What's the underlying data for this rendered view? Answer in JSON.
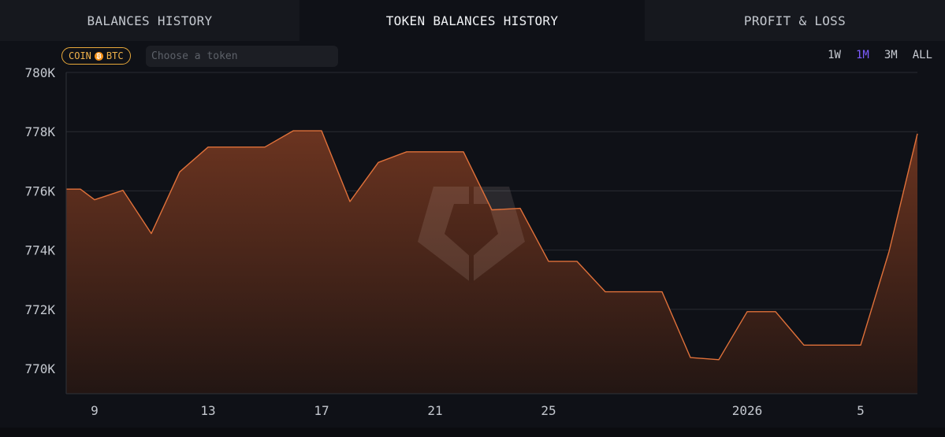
{
  "tabs": [
    {
      "label": "BALANCES HISTORY",
      "active": false
    },
    {
      "label": "TOKEN BALANCES HISTORY",
      "active": true
    },
    {
      "label": "PROFIT & LOSS",
      "active": false
    }
  ],
  "filter": {
    "badge_prefix": "COIN",
    "badge_icon": "bitcoin-icon",
    "badge_token": "BTC",
    "token_placeholder": "Choose a token"
  },
  "ranges": [
    {
      "label": "1W",
      "active": false
    },
    {
      "label": "1M",
      "active": true
    },
    {
      "label": "3M",
      "active": false
    },
    {
      "label": "ALL",
      "active": false
    }
  ],
  "colors": {
    "line": "#e0713a",
    "fill_top": "#6b3420",
    "fill_bottom": "#231613",
    "grid": "#2a2c33",
    "active_range": "#7c5cff",
    "badge": "#f0b24a"
  },
  "chart_data": {
    "type": "area",
    "x_unit": "day",
    "x_start": "2025-12-08",
    "x_end": "2026-01-07",
    "xticks": [
      {
        "label": "9",
        "date": "2025-12-09"
      },
      {
        "label": "13",
        "date": "2025-12-13"
      },
      {
        "label": "17",
        "date": "2025-12-17"
      },
      {
        "label": "21",
        "date": "2025-12-21"
      },
      {
        "label": "25",
        "date": "2025-12-25"
      },
      {
        "label": "2026",
        "date": "2026-01-01"
      },
      {
        "label": "5",
        "date": "2026-01-05"
      }
    ],
    "yticks": [
      770000,
      772000,
      774000,
      776000,
      778000,
      780000
    ],
    "ytick_labels": [
      "770K",
      "772K",
      "774K",
      "776K",
      "778K",
      "780K"
    ],
    "ylim": [
      769150,
      780000
    ],
    "grid": true,
    "series": [
      {
        "points": [
          {
            "x": "2025-12-08",
            "y": 776060
          },
          {
            "x": "2025-12-08 12:00",
            "y": 776060
          },
          {
            "x": "2025-12-09",
            "y": 775700
          },
          {
            "x": "2025-12-10",
            "y": 776020
          },
          {
            "x": "2025-12-11",
            "y": 774560
          },
          {
            "x": "2025-12-12",
            "y": 776640
          },
          {
            "x": "2025-12-13",
            "y": 777480
          },
          {
            "x": "2025-12-14",
            "y": 777480
          },
          {
            "x": "2025-12-15",
            "y": 777480
          },
          {
            "x": "2025-12-16",
            "y": 778030
          },
          {
            "x": "2025-12-17",
            "y": 778030
          },
          {
            "x": "2025-12-18",
            "y": 775640
          },
          {
            "x": "2025-12-19",
            "y": 776960
          },
          {
            "x": "2025-12-20",
            "y": 777320
          },
          {
            "x": "2025-12-21",
            "y": 777320
          },
          {
            "x": "2025-12-22",
            "y": 777320
          },
          {
            "x": "2025-12-23",
            "y": 775360
          },
          {
            "x": "2025-12-24",
            "y": 775410
          },
          {
            "x": "2025-12-25",
            "y": 773620
          },
          {
            "x": "2025-12-26",
            "y": 773620
          },
          {
            "x": "2025-12-27",
            "y": 772590
          },
          {
            "x": "2025-12-28",
            "y": 772590
          },
          {
            "x": "2025-12-29",
            "y": 772590
          },
          {
            "x": "2025-12-30",
            "y": 770370
          },
          {
            "x": "2025-12-31",
            "y": 770300
          },
          {
            "x": "2026-01-01",
            "y": 771920
          },
          {
            "x": "2026-01-02",
            "y": 771920
          },
          {
            "x": "2026-01-03",
            "y": 770790
          },
          {
            "x": "2026-01-04",
            "y": 770790
          },
          {
            "x": "2026-01-05",
            "y": 770790
          },
          {
            "x": "2026-01-06",
            "y": 773950
          },
          {
            "x": "2026-01-07",
            "y": 777930
          }
        ]
      }
    ]
  }
}
